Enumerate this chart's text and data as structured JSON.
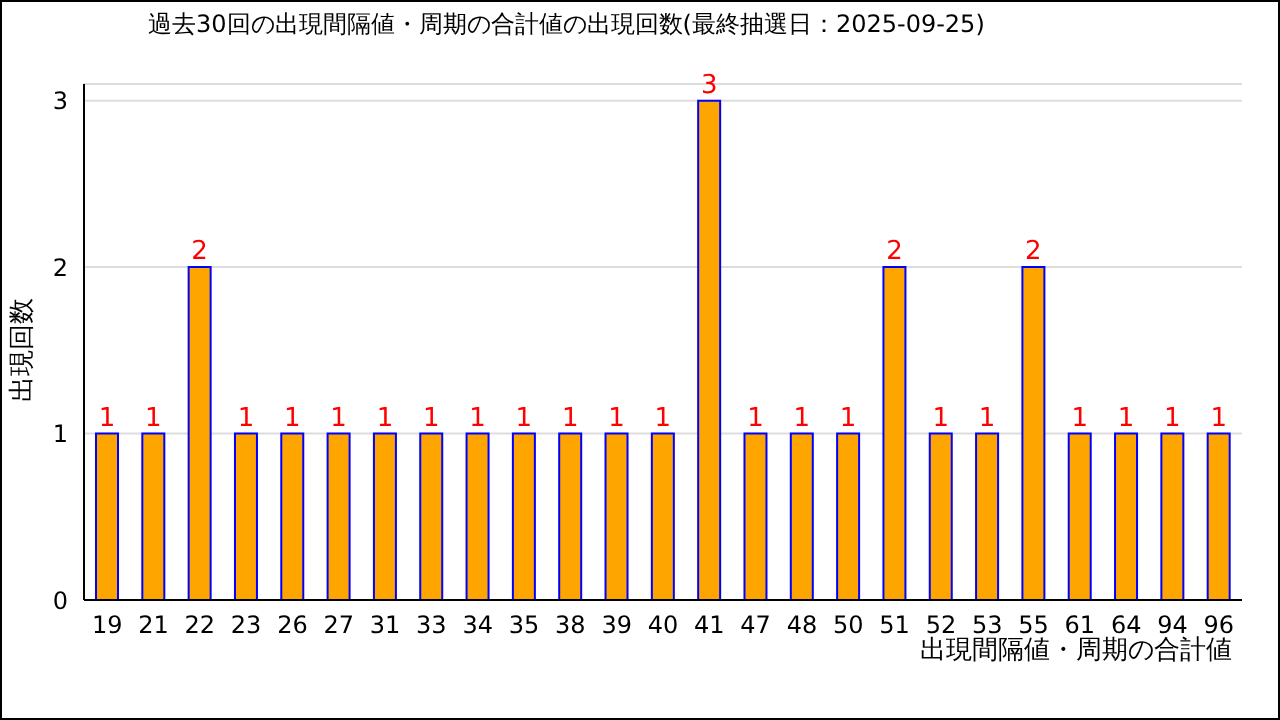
{
  "chart_data": {
    "type": "bar",
    "title": "過去30回の出現間隔値・周期の合計値の出現回数(最終抽選日：2025-09-25)",
    "xlabel": "出現間隔値・周期の合計値",
    "ylabel": "出現回数",
    "categories": [
      "19",
      "21",
      "22",
      "23",
      "26",
      "27",
      "31",
      "33",
      "34",
      "35",
      "38",
      "39",
      "40",
      "41",
      "47",
      "48",
      "50",
      "51",
      "52",
      "53",
      "55",
      "61",
      "64",
      "94",
      "96"
    ],
    "values": [
      1,
      1,
      2,
      1,
      1,
      1,
      1,
      1,
      1,
      1,
      1,
      1,
      1,
      3,
      1,
      1,
      1,
      2,
      1,
      1,
      2,
      1,
      1,
      1,
      1
    ],
    "color": "#ffa500",
    "ylim": [
      0,
      3.1
    ],
    "yticks": [
      0,
      1,
      2,
      3
    ],
    "grid": "y",
    "data_labels": true
  }
}
